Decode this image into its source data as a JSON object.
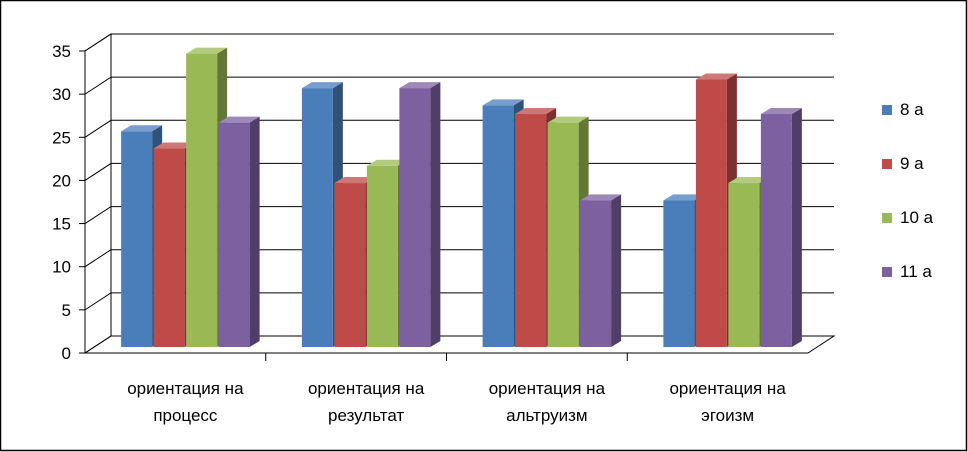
{
  "chart_data": {
    "type": "bar",
    "style": "3d-clustered-column",
    "title": "",
    "xlabel": "",
    "ylabel": "",
    "ylim": [
      0,
      35
    ],
    "y_ticks": [
      "0",
      "5",
      "10",
      "15",
      "20",
      "25",
      "30",
      "35"
    ],
    "categories": [
      [
        "ориентация на",
        "процесс"
      ],
      [
        "ориентация на",
        "результат"
      ],
      [
        "ориентация на",
        "альтруизм"
      ],
      [
        "ориентация на",
        "эгоизм"
      ]
    ],
    "series": [
      {
        "name": "8 а",
        "color": "#4a7ebb",
        "values": [
          25,
          30,
          28,
          17
        ]
      },
      {
        "name": "9 а",
        "color": "#be4b48",
        "values": [
          23,
          19,
          27,
          31
        ]
      },
      {
        "name": "10 а",
        "color": "#98b954",
        "values": [
          34,
          21,
          26,
          19
        ]
      },
      {
        "name": "11 а",
        "color": "#7d60a0",
        "values": [
          26,
          30,
          17,
          27
        ]
      }
    ],
    "grid": true,
    "legend": "right"
  }
}
